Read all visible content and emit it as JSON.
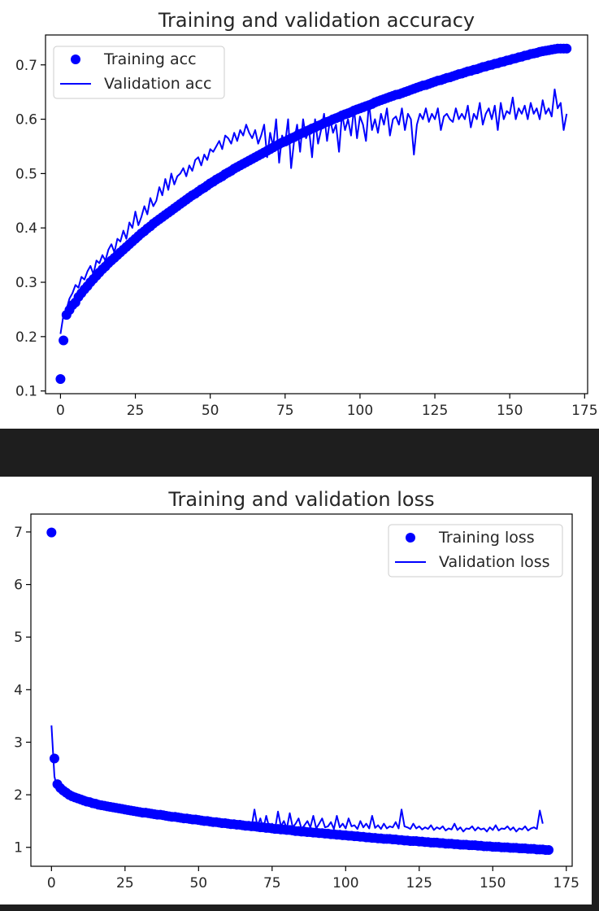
{
  "chart_data": [
    {
      "type": "line",
      "title": "Training and validation accuracy",
      "xlabel": "",
      "ylabel": "",
      "xlim": [
        -5,
        176
      ],
      "ylim": [
        0.095,
        0.755
      ],
      "x_ticks": [
        0,
        25,
        50,
        75,
        100,
        125,
        150,
        175
      ],
      "y_ticks": [
        0.1,
        0.2,
        0.3,
        0.4,
        0.5,
        0.6,
        0.7
      ],
      "grid": false,
      "legend_placement": "top-left",
      "epochs": 170,
      "series": [
        {
          "name": "Training acc",
          "style": "markers",
          "color": "#0000ff",
          "x_first": 0,
          "values": [
            0.122,
            0.193,
            0.24,
            0.249,
            0.258,
            0.263,
            0.273,
            0.28,
            0.287,
            0.293,
            0.3,
            0.306,
            0.312,
            0.318,
            0.324,
            0.329,
            0.335,
            0.34,
            0.345,
            0.35,
            0.355,
            0.36,
            0.365,
            0.37,
            0.375,
            0.38,
            0.385,
            0.39,
            0.394,
            0.399,
            0.403,
            0.408,
            0.412,
            0.416,
            0.42,
            0.424,
            0.428,
            0.432,
            0.436,
            0.44,
            0.444,
            0.448,
            0.452,
            0.456,
            0.46,
            0.463,
            0.467,
            0.471,
            0.474,
            0.478,
            0.482,
            0.485,
            0.489,
            0.492,
            0.495,
            0.499,
            0.502,
            0.505,
            0.509,
            0.512,
            0.515,
            0.518,
            0.521,
            0.524,
            0.527,
            0.53,
            0.533,
            0.536,
            0.539,
            0.542,
            0.545,
            0.548,
            0.551,
            0.554,
            0.557,
            0.559,
            0.562,
            0.565,
            0.567,
            0.57,
            0.573,
            0.575,
            0.578,
            0.58,
            0.583,
            0.585,
            0.588,
            0.59,
            0.593,
            0.595,
            0.597,
            0.6,
            0.602,
            0.604,
            0.607,
            0.609,
            0.611,
            0.613,
            0.616,
            0.618,
            0.62,
            0.622,
            0.624,
            0.626,
            0.628,
            0.631,
            0.633,
            0.635,
            0.637,
            0.639,
            0.641,
            0.643,
            0.645,
            0.646,
            0.648,
            0.65,
            0.652,
            0.654,
            0.656,
            0.658,
            0.66,
            0.662,
            0.663,
            0.665,
            0.667,
            0.669,
            0.671,
            0.672,
            0.674,
            0.676,
            0.677,
            0.679,
            0.681,
            0.683,
            0.684,
            0.686,
            0.688,
            0.689,
            0.691,
            0.692,
            0.694,
            0.696,
            0.697,
            0.699,
            0.7,
            0.702,
            0.703,
            0.705,
            0.706,
            0.708,
            0.709,
            0.711,
            0.712,
            0.714,
            0.715,
            0.717,
            0.718,
            0.72,
            0.721,
            0.722,
            0.724,
            0.725,
            0.726,
            0.727,
            0.728,
            0.729,
            0.73,
            0.73,
            0.73,
            0.73
          ]
        },
        {
          "name": "Validation acc",
          "style": "line",
          "color": "#0000ff",
          "x_first": 0,
          "values": [
            0.205,
            0.24,
            0.25,
            0.27,
            0.28,
            0.295,
            0.29,
            0.31,
            0.305,
            0.32,
            0.33,
            0.315,
            0.34,
            0.335,
            0.35,
            0.34,
            0.36,
            0.37,
            0.355,
            0.38,
            0.375,
            0.395,
            0.38,
            0.41,
            0.4,
            0.43,
            0.405,
            0.42,
            0.44,
            0.425,
            0.455,
            0.44,
            0.45,
            0.475,
            0.46,
            0.49,
            0.47,
            0.5,
            0.48,
            0.495,
            0.5,
            0.51,
            0.495,
            0.515,
            0.505,
            0.525,
            0.53,
            0.515,
            0.535,
            0.525,
            0.545,
            0.54,
            0.55,
            0.56,
            0.545,
            0.57,
            0.565,
            0.555,
            0.575,
            0.56,
            0.58,
            0.57,
            0.59,
            0.575,
            0.565,
            0.58,
            0.555,
            0.57,
            0.59,
            0.53,
            0.575,
            0.55,
            0.6,
            0.52,
            0.57,
            0.555,
            0.6,
            0.51,
            0.56,
            0.59,
            0.54,
            0.6,
            0.565,
            0.58,
            0.53,
            0.6,
            0.555,
            0.58,
            0.61,
            0.56,
            0.6,
            0.575,
            0.59,
            0.54,
            0.61,
            0.58,
            0.6,
            0.57,
            0.62,
            0.565,
            0.605,
            0.59,
            0.56,
            0.63,
            0.58,
            0.6,
            0.575,
            0.61,
            0.59,
            0.62,
            0.57,
            0.6,
            0.605,
            0.59,
            0.62,
            0.58,
            0.61,
            0.6,
            0.535,
            0.59,
            0.61,
            0.6,
            0.62,
            0.595,
            0.61,
            0.6,
            0.62,
            0.58,
            0.605,
            0.61,
            0.6,
            0.595,
            0.62,
            0.6,
            0.61,
            0.6,
            0.625,
            0.585,
            0.61,
            0.6,
            0.63,
            0.59,
            0.61,
            0.62,
            0.6,
            0.625,
            0.58,
            0.63,
            0.6,
            0.615,
            0.61,
            0.64,
            0.6,
            0.62,
            0.61,
            0.625,
            0.6,
            0.63,
            0.61,
            0.62,
            0.6,
            0.635,
            0.61,
            0.62,
            0.605,
            0.655,
            0.62,
            0.63,
            0.58,
            0.61
          ]
        }
      ]
    },
    {
      "type": "line",
      "title": "Training and validation loss",
      "xlabel": "",
      "ylabel": "",
      "xlim": [
        -7,
        177
      ],
      "ylim": [
        0.64,
        7.34
      ],
      "x_ticks": [
        0,
        25,
        50,
        75,
        100,
        125,
        150,
        175
      ],
      "y_ticks": [
        1,
        2,
        3,
        4,
        5,
        6,
        7
      ],
      "grid": false,
      "legend_placement": "top-right",
      "epochs": 170,
      "series": [
        {
          "name": "Training loss",
          "style": "markers",
          "color": "#0000ff",
          "x_first": 0,
          "values": [
            6.99,
            2.69,
            2.2,
            2.13,
            2.08,
            2.04,
            2.0,
            1.97,
            1.95,
            1.93,
            1.91,
            1.89,
            1.87,
            1.86,
            1.84,
            1.83,
            1.81,
            1.8,
            1.79,
            1.78,
            1.77,
            1.76,
            1.75,
            1.74,
            1.73,
            1.72,
            1.71,
            1.7,
            1.69,
            1.68,
            1.67,
            1.66,
            1.66,
            1.65,
            1.64,
            1.63,
            1.62,
            1.62,
            1.61,
            1.6,
            1.59,
            1.58,
            1.58,
            1.57,
            1.56,
            1.55,
            1.55,
            1.54,
            1.53,
            1.53,
            1.52,
            1.51,
            1.5,
            1.5,
            1.49,
            1.48,
            1.48,
            1.47,
            1.46,
            1.46,
            1.45,
            1.44,
            1.44,
            1.43,
            1.43,
            1.42,
            1.41,
            1.41,
            1.4,
            1.4,
            1.39,
            1.38,
            1.38,
            1.37,
            1.37,
            1.36,
            1.35,
            1.35,
            1.34,
            1.34,
            1.33,
            1.33,
            1.32,
            1.31,
            1.31,
            1.3,
            1.3,
            1.29,
            1.29,
            1.28,
            1.28,
            1.27,
            1.27,
            1.26,
            1.26,
            1.25,
            1.25,
            1.24,
            1.24,
            1.23,
            1.23,
            1.22,
            1.22,
            1.21,
            1.21,
            1.2,
            1.2,
            1.19,
            1.19,
            1.18,
            1.18,
            1.17,
            1.17,
            1.16,
            1.16,
            1.16,
            1.15,
            1.15,
            1.14,
            1.14,
            1.13,
            1.13,
            1.12,
            1.12,
            1.12,
            1.11,
            1.11,
            1.1,
            1.1,
            1.09,
            1.09,
            1.09,
            1.08,
            1.08,
            1.07,
            1.07,
            1.07,
            1.06,
            1.06,
            1.05,
            1.05,
            1.05,
            1.04,
            1.04,
            1.04,
            1.03,
            1.03,
            1.02,
            1.02,
            1.02,
            1.01,
            1.01,
            1.01,
            1.0,
            1.0,
            1.0,
            0.99,
            0.99,
            0.99,
            0.98,
            0.98,
            0.98,
            0.97,
            0.97,
            0.97,
            0.96,
            0.96,
            0.96,
            0.95,
            0.95
          ]
        },
        {
          "name": "Validation loss",
          "style": "line",
          "color": "#0000ff",
          "x_first": 0,
          "values": [
            3.32,
            2.35,
            2.1,
            2.05,
            2.0,
            1.96,
            1.95,
            1.92,
            1.9,
            1.89,
            1.88,
            1.86,
            1.85,
            1.83,
            1.82,
            1.81,
            1.8,
            1.79,
            1.78,
            1.76,
            1.75,
            1.75,
            1.74,
            1.73,
            1.72,
            1.71,
            1.7,
            1.7,
            1.69,
            1.68,
            1.67,
            1.66,
            1.66,
            1.65,
            1.64,
            1.63,
            1.62,
            1.62,
            1.61,
            1.6,
            1.59,
            1.58,
            1.58,
            1.57,
            1.56,
            1.55,
            1.55,
            1.54,
            1.53,
            1.52,
            1.51,
            1.5,
            1.5,
            1.49,
            1.48,
            1.47,
            1.46,
            1.45,
            1.44,
            1.43,
            1.42,
            1.4,
            1.39,
            1.4,
            1.38,
            1.42,
            1.4,
            1.45,
            1.38,
            1.72,
            1.4,
            1.55,
            1.35,
            1.6,
            1.38,
            1.45,
            1.35,
            1.68,
            1.4,
            1.5,
            1.36,
            1.65,
            1.38,
            1.45,
            1.55,
            1.35,
            1.42,
            1.5,
            1.38,
            1.6,
            1.36,
            1.45,
            1.55,
            1.38,
            1.4,
            1.48,
            1.35,
            1.6,
            1.38,
            1.45,
            1.36,
            1.55,
            1.4,
            1.42,
            1.35,
            1.5,
            1.38,
            1.45,
            1.36,
            1.6,
            1.37,
            1.42,
            1.35,
            1.45,
            1.36,
            1.4,
            1.38,
            1.48,
            1.36,
            1.72,
            1.4,
            1.38,
            1.35,
            1.45,
            1.36,
            1.4,
            1.34,
            1.38,
            1.35,
            1.42,
            1.33,
            1.38,
            1.35,
            1.4,
            1.32,
            1.36,
            1.34,
            1.45,
            1.33,
            1.38,
            1.3,
            1.36,
            1.35,
            1.4,
            1.32,
            1.38,
            1.34,
            1.36,
            1.3,
            1.38,
            1.33,
            1.42,
            1.32,
            1.36,
            1.35,
            1.4,
            1.33,
            1.38,
            1.3,
            1.36,
            1.34,
            1.4,
            1.32,
            1.36,
            1.38,
            1.35,
            1.7,
            1.45
          ]
        }
      ]
    }
  ]
}
